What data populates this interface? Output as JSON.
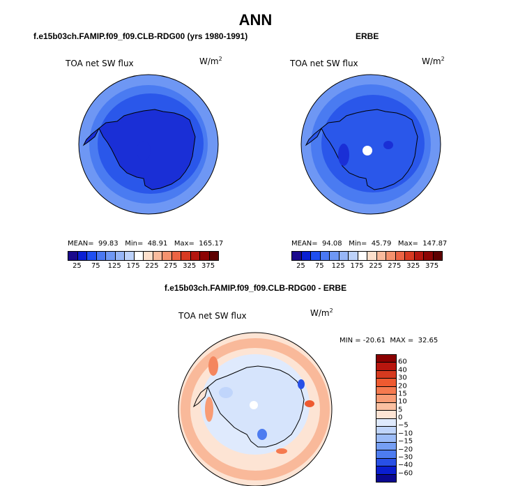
{
  "title": "ANN",
  "panels": [
    {
      "subtitle": "f.e15b03ch.FAMIP.f09_f09.CLB-RDG00 (yrs 1980-1991)",
      "variable": "TOA net SW flux",
      "units": "W/m",
      "units_exp": "2",
      "mean_label": "MEAN=",
      "mean": "99.83",
      "min_label": "Min=",
      "min": "48.91",
      "max_label": "Max=",
      "max": "165.17"
    },
    {
      "subtitle": "ERBE",
      "variable": "TOA net SW flux",
      "units": "W/m",
      "units_exp": "2",
      "mean_label": "MEAN=",
      "mean": "94.08",
      "min_label": "Min=",
      "min": "45.79",
      "max_label": "Max=",
      "max": "147.87"
    },
    {
      "subtitle": "f.e15b03ch.FAMIP.f09_f09.CLB-RDG00 - ERBE",
      "variable": "TOA net SW flux",
      "units": "W/m",
      "units_exp": "2",
      "minmax_text": "MIN = -20.61  MAX =  32.65"
    }
  ],
  "chart_data": [
    {
      "type": "heatmap",
      "projection": "south polar stereographic",
      "title": "f.e15b03ch.FAMIP.f09_f09.CLB-RDG00 (yrs 1980-1991)",
      "variable": "TOA net SW flux",
      "units": "W/m^2",
      "mean": 99.83,
      "min": 48.91,
      "max": 165.17,
      "colorbar_levels": [
        25,
        50,
        75,
        100,
        125,
        150,
        175,
        200,
        225,
        250,
        275,
        300,
        325,
        350,
        375
      ],
      "colorbar_tick_labels": [
        "25",
        "75",
        "125",
        "175",
        "225",
        "275",
        "325",
        "375"
      ],
      "colorbar_colors": [
        "#1a0a8c",
        "#0a20d2",
        "#1f4ff0",
        "#4a78f2",
        "#6f98f5",
        "#97b6f7",
        "#bdd2fa",
        "#ffffff",
        "#fde0cc",
        "#f9bb9d",
        "#f4926e",
        "#ec6444",
        "#d83a22",
        "#b4160f",
        "#8c0404",
        "#5e0000"
      ]
    },
    {
      "type": "heatmap",
      "projection": "south polar stereographic",
      "title": "ERBE",
      "variable": "TOA net SW flux",
      "units": "W/m^2",
      "mean": 94.08,
      "min": 45.79,
      "max": 147.87,
      "colorbar_levels": [
        25,
        50,
        75,
        100,
        125,
        150,
        175,
        200,
        225,
        250,
        275,
        300,
        325,
        350,
        375
      ],
      "colorbar_tick_labels": [
        "25",
        "75",
        "125",
        "175",
        "225",
        "275",
        "325",
        "375"
      ],
      "colorbar_colors": [
        "#1a0a8c",
        "#0a20d2",
        "#1f4ff0",
        "#4a78f2",
        "#6f98f5",
        "#97b6f7",
        "#bdd2fa",
        "#ffffff",
        "#fde0cc",
        "#f9bb9d",
        "#f4926e",
        "#ec6444",
        "#d83a22",
        "#b4160f",
        "#8c0404",
        "#5e0000"
      ]
    },
    {
      "type": "heatmap",
      "projection": "south polar stereographic",
      "title": "f.e15b03ch.FAMIP.f09_f09.CLB-RDG00 - ERBE",
      "variable": "TOA net SW flux",
      "units": "W/m^2",
      "min": -20.61,
      "max": 32.65,
      "colorbar_orientation": "vertical",
      "colorbar_levels": [
        60,
        40,
        30,
        20,
        15,
        10,
        5,
        0,
        -5,
        -10,
        -15,
        -20,
        -30,
        -40,
        -60
      ],
      "colorbar_tick_labels": [
        "60",
        "40",
        "30",
        "20",
        "15",
        "10",
        "5",
        "0",
        "−5",
        "−10",
        "−15",
        "−20",
        "−30",
        "−40",
        "−60"
      ],
      "colorbar_colors": [
        "#8a0000",
        "#b8160e",
        "#d63a1f",
        "#ee5a30",
        "#f57a4f",
        "#f89c75",
        "#fbc0a1",
        "#fde4d4",
        "#dfeafd",
        "#c0d5fb",
        "#9cbcf8",
        "#769ff4",
        "#4d7cf0",
        "#2850e6",
        "#0a1ecf",
        "#0a0890"
      ]
    }
  ]
}
